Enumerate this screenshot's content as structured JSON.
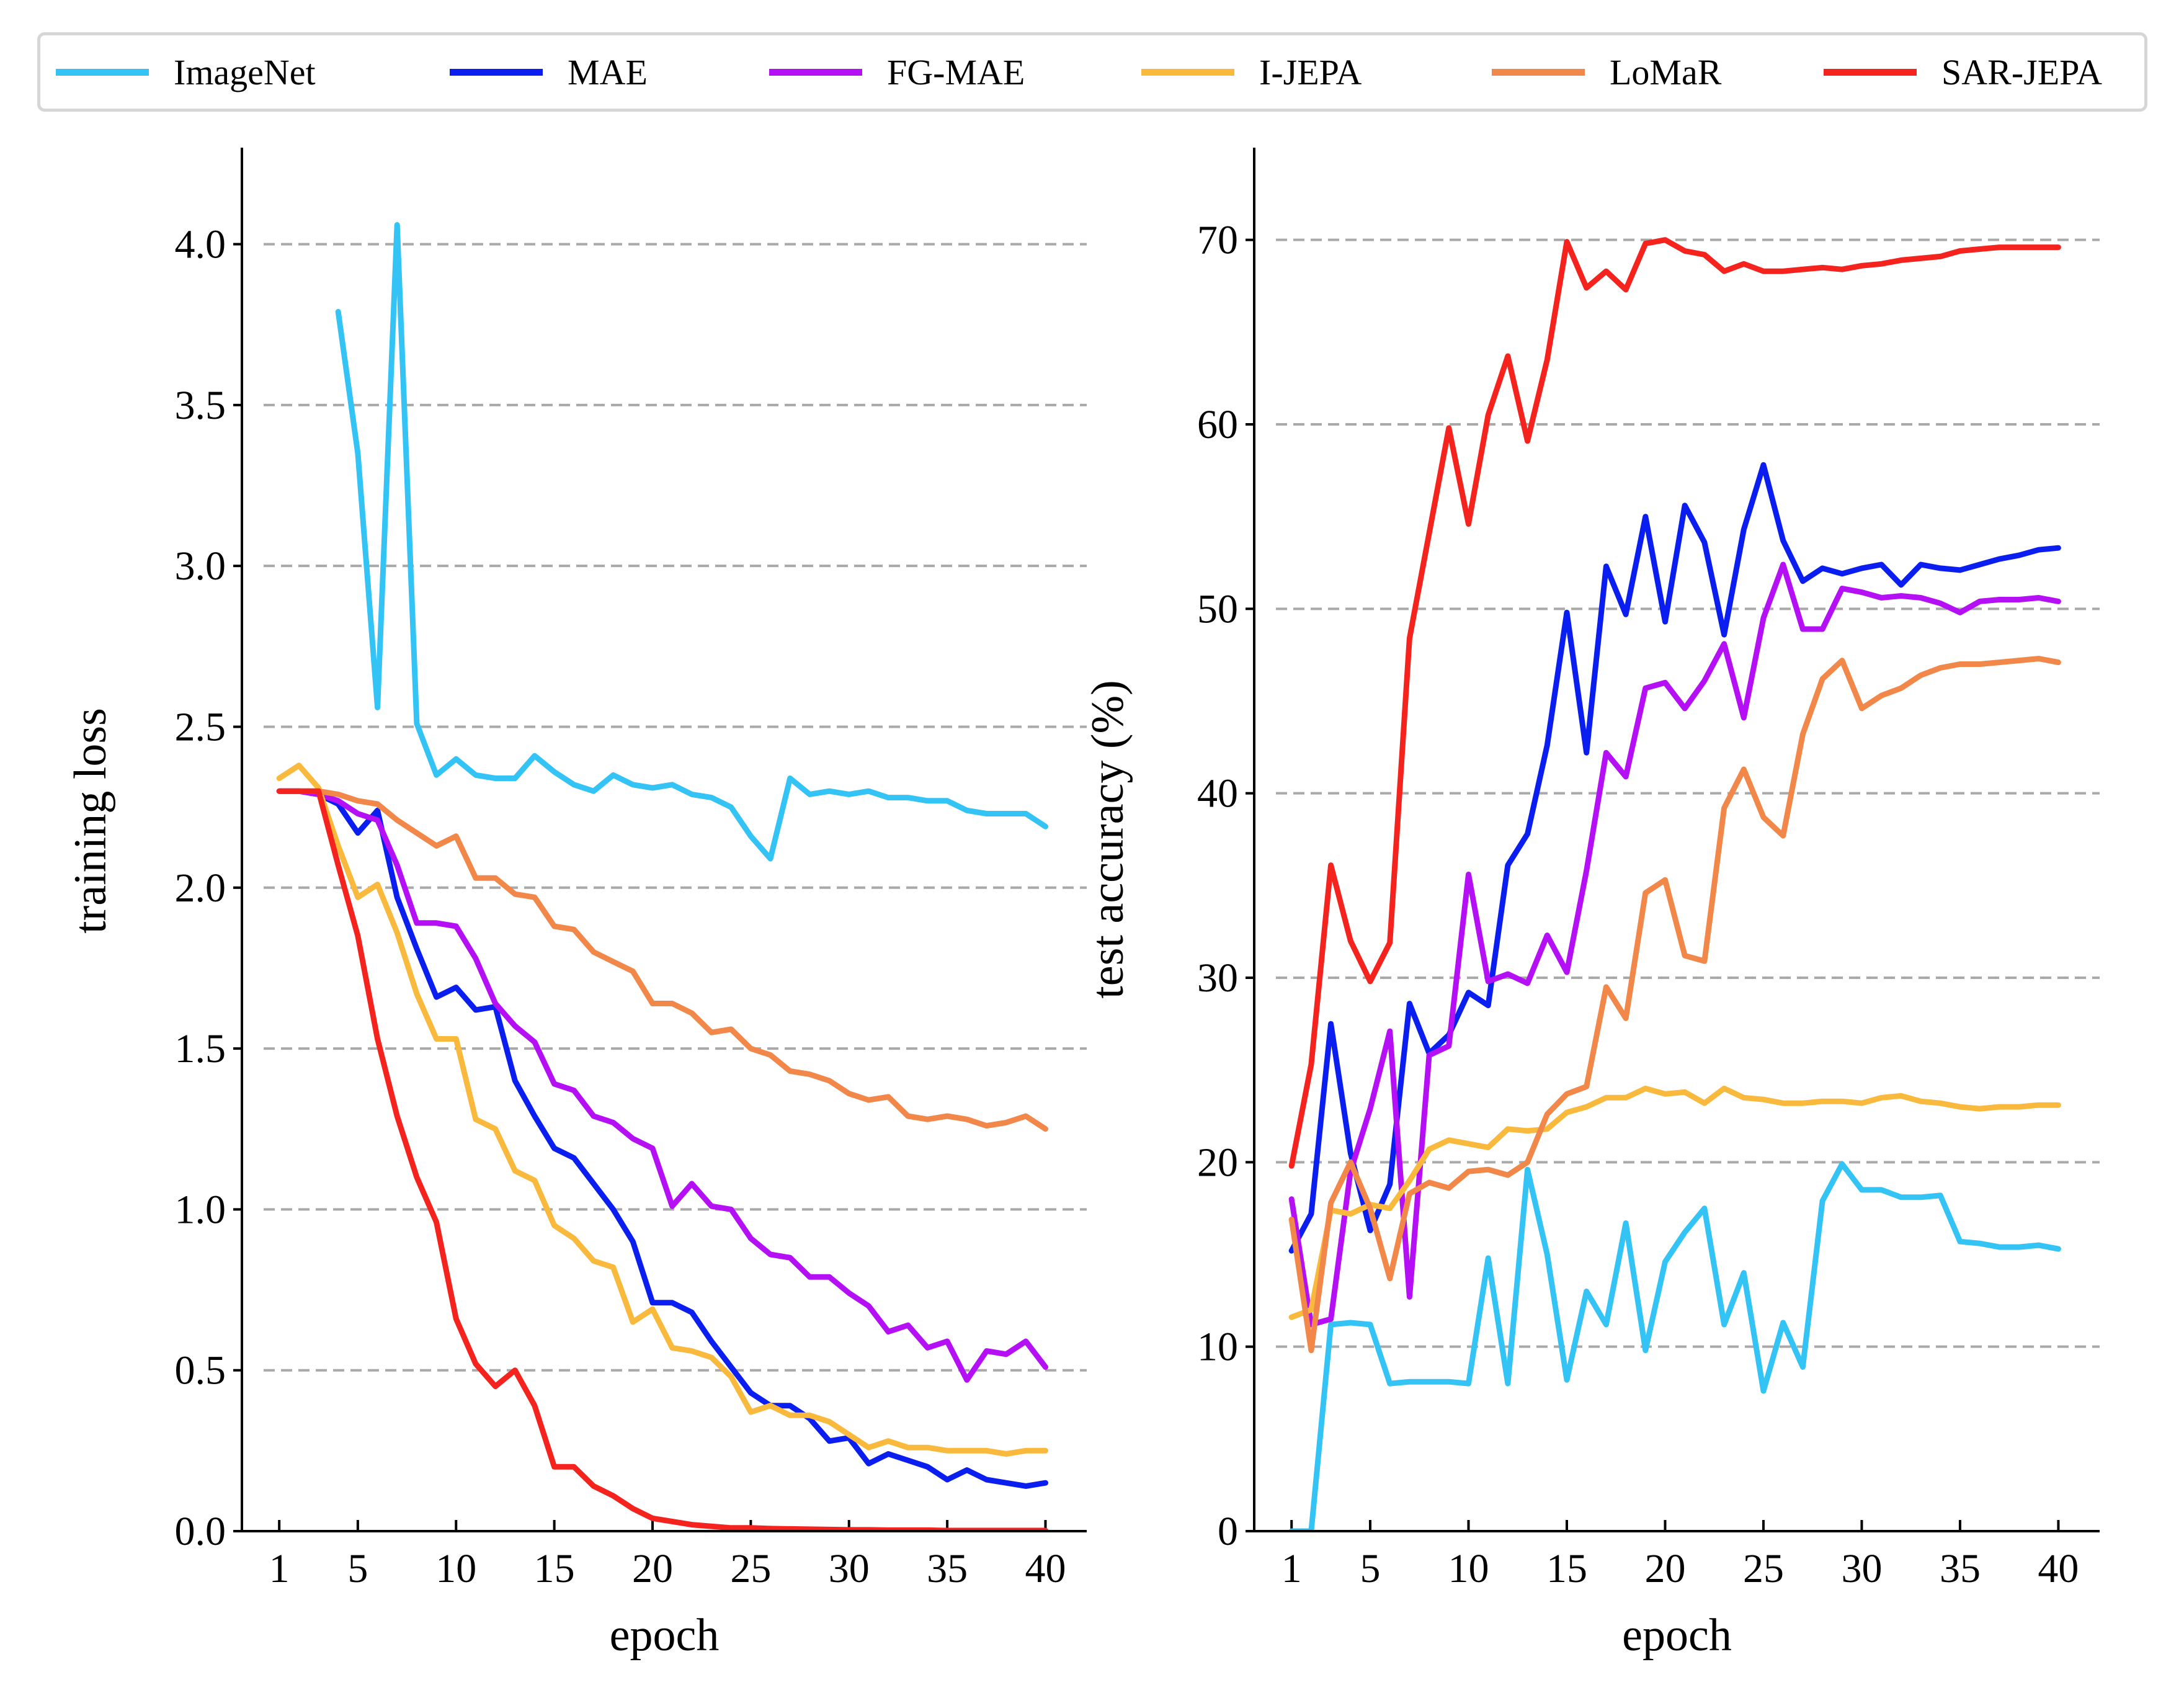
{
  "colors": {
    "ImageNet": "#33c3f4",
    "MAE": "#0a1ef0",
    "FG-MAE": "#b40ff5",
    "I-JEPA": "#f8b93c",
    "LoMaR": "#f2874a",
    "SAR-JEPA": "#f5231e"
  },
  "legend": [
    "ImageNet",
    "MAE",
    "FG-MAE",
    "I-JEPA",
    "LoMaR",
    "SAR-JEPA"
  ],
  "chart_data": [
    {
      "type": "line",
      "xlabel": "epoch",
      "ylabel": "training loss",
      "xticks": [
        1,
        5,
        10,
        15,
        20,
        25,
        30,
        35,
        40
      ],
      "yticks": [
        "0.0",
        "0.5",
        "1.0",
        "1.5",
        "2.0",
        "2.5",
        "3.0",
        "3.5",
        "4.0"
      ],
      "xlim": [
        -0.9,
        42.1
      ],
      "ylim": [
        0,
        4.3
      ],
      "grid": "y-dashed",
      "legend_position": "top",
      "series": [
        {
          "name": "ImageNet",
          "x": [
            4,
            5,
            6,
            7,
            8,
            9,
            10,
            11,
            12,
            13,
            14,
            15,
            16,
            17,
            18,
            19,
            20,
            21,
            22,
            23,
            24,
            25,
            26,
            27,
            28,
            29,
            30,
            31,
            32,
            33,
            34,
            35,
            36,
            37,
            38,
            39,
            40
          ],
          "values": [
            3.79,
            3.35,
            2.56,
            4.06,
            2.51,
            2.35,
            2.4,
            2.35,
            2.34,
            2.34,
            2.41,
            2.36,
            2.32,
            2.3,
            2.35,
            2.32,
            2.31,
            2.32,
            2.29,
            2.28,
            2.25,
            2.16,
            2.09,
            2.34,
            2.29,
            2.3,
            2.29,
            2.3,
            2.28,
            2.28,
            2.27,
            2.27,
            2.24,
            2.23,
            2.23,
            2.23,
            2.19
          ]
        },
        {
          "name": "MAE",
          "x": [
            1,
            2,
            3,
            4,
            5,
            6,
            7,
            8,
            9,
            10,
            11,
            12,
            13,
            14,
            15,
            16,
            17,
            18,
            19,
            20,
            21,
            22,
            23,
            24,
            25,
            26,
            27,
            28,
            29,
            30,
            31,
            32,
            33,
            34,
            35,
            36,
            37,
            38,
            39,
            40
          ],
          "values": [
            2.3,
            2.3,
            2.29,
            2.26,
            2.17,
            2.24,
            1.97,
            1.81,
            1.66,
            1.69,
            1.62,
            1.63,
            1.4,
            1.29,
            1.19,
            1.16,
            1.08,
            1.0,
            0.9,
            0.71,
            0.71,
            0.68,
            0.59,
            0.51,
            0.43,
            0.39,
            0.39,
            0.35,
            0.28,
            0.29,
            0.21,
            0.24,
            0.22,
            0.2,
            0.16,
            0.19,
            0.16,
            0.15,
            0.14,
            0.15
          ]
        },
        {
          "name": "FG-MAE",
          "x": [
            1,
            2,
            3,
            4,
            5,
            6,
            7,
            8,
            9,
            10,
            11,
            12,
            13,
            14,
            15,
            16,
            17,
            18,
            19,
            20,
            21,
            22,
            23,
            24,
            25,
            26,
            27,
            28,
            29,
            30,
            31,
            32,
            33,
            34,
            35,
            36,
            37,
            38,
            39,
            40
          ],
          "values": [
            2.3,
            2.3,
            2.29,
            2.27,
            2.23,
            2.21,
            2.07,
            1.89,
            1.89,
            1.88,
            1.78,
            1.64,
            1.57,
            1.52,
            1.39,
            1.37,
            1.29,
            1.27,
            1.22,
            1.19,
            1.01,
            1.08,
            1.01,
            1.0,
            0.91,
            0.86,
            0.85,
            0.79,
            0.79,
            0.74,
            0.7,
            0.62,
            0.64,
            0.57,
            0.59,
            0.47,
            0.56,
            0.55,
            0.59,
            0.51
          ]
        },
        {
          "name": "I-JEPA",
          "x": [
            1,
            2,
            3,
            4,
            5,
            6,
            7,
            8,
            9,
            10,
            11,
            12,
            13,
            14,
            15,
            16,
            17,
            18,
            19,
            20,
            21,
            22,
            23,
            24,
            25,
            26,
            27,
            28,
            29,
            30,
            31,
            32,
            33,
            34,
            35,
            36,
            37,
            38,
            39,
            40
          ],
          "values": [
            2.34,
            2.38,
            2.31,
            2.13,
            1.97,
            2.01,
            1.86,
            1.67,
            1.53,
            1.53,
            1.28,
            1.25,
            1.12,
            1.09,
            0.95,
            0.91,
            0.84,
            0.82,
            0.65,
            0.69,
            0.57,
            0.56,
            0.54,
            0.48,
            0.37,
            0.39,
            0.36,
            0.36,
            0.34,
            0.3,
            0.26,
            0.28,
            0.26,
            0.26,
            0.25,
            0.25,
            0.25,
            0.24,
            0.25,
            0.25
          ]
        },
        {
          "name": "LoMaR",
          "x": [
            1,
            2,
            3,
            4,
            5,
            6,
            7,
            8,
            9,
            10,
            11,
            12,
            13,
            14,
            15,
            16,
            17,
            18,
            19,
            20,
            21,
            22,
            23,
            24,
            25,
            26,
            27,
            28,
            29,
            30,
            31,
            32,
            33,
            34,
            35,
            36,
            37,
            38,
            39,
            40
          ],
          "values": [
            2.3,
            2.3,
            2.3,
            2.29,
            2.27,
            2.26,
            2.21,
            2.17,
            2.13,
            2.16,
            2.03,
            2.03,
            1.98,
            1.97,
            1.88,
            1.87,
            1.8,
            1.77,
            1.74,
            1.64,
            1.64,
            1.61,
            1.55,
            1.56,
            1.5,
            1.48,
            1.43,
            1.42,
            1.4,
            1.36,
            1.34,
            1.35,
            1.29,
            1.28,
            1.29,
            1.28,
            1.26,
            1.27,
            1.29,
            1.25
          ]
        },
        {
          "name": "SAR-JEPA",
          "x": [
            1,
            2,
            3,
            4,
            5,
            6,
            7,
            8,
            9,
            10,
            11,
            12,
            13,
            14,
            15,
            16,
            17,
            18,
            19,
            20,
            21,
            22,
            23,
            24,
            25,
            26,
            27,
            28,
            29,
            30,
            31,
            32,
            33,
            34,
            35,
            36,
            37,
            38,
            39,
            40
          ],
          "values": [
            2.3,
            2.3,
            2.3,
            2.07,
            1.85,
            1.53,
            1.29,
            1.1,
            0.96,
            0.66,
            0.52,
            0.45,
            0.5,
            0.39,
            0.2,
            0.2,
            0.14,
            0.11,
            0.07,
            0.04,
            0.03,
            0.02,
            0.015,
            0.01,
            0.01,
            0.008,
            0.007,
            0.006,
            0.005,
            0.004,
            0.004,
            0.003,
            0.003,
            0.003,
            0.002,
            0.002,
            0.002,
            0.002,
            0.002,
            0.002
          ]
        }
      ]
    },
    {
      "type": "line",
      "xlabel": "epoch",
      "ylabel": "test accuracy (%)",
      "xticks": [
        1,
        5,
        10,
        15,
        20,
        25,
        30,
        35,
        40
      ],
      "yticks": [
        "0",
        "10",
        "20",
        "30",
        "40",
        "50",
        "60",
        "70"
      ],
      "xlim": [
        -0.9,
        42.1
      ],
      "ylim": [
        0,
        75
      ],
      "grid": "y-dashed",
      "series": [
        {
          "name": "ImageNet",
          "x": [
            1,
            2,
            3,
            4,
            5,
            6,
            7,
            8,
            9,
            10,
            11,
            12,
            13,
            14,
            15,
            16,
            17,
            18,
            19,
            20,
            21,
            22,
            23,
            24,
            25,
            26,
            27,
            28,
            29,
            30,
            31,
            32,
            33,
            34,
            35,
            36,
            37,
            38,
            39,
            40
          ],
          "values": [
            0,
            0,
            11.2,
            11.3,
            11.2,
            8.0,
            8.1,
            8.1,
            8.1,
            8.0,
            14.8,
            8.0,
            19.6,
            15.0,
            8.2,
            13.0,
            11.2,
            16.7,
            9.8,
            14.6,
            16.2,
            17.5,
            11.2,
            14.0,
            7.6,
            11.3,
            8.9,
            17.9,
            19.9,
            18.5,
            18.5,
            18.1,
            18.1,
            18.2,
            15.7,
            15.6,
            15.4,
            15.4,
            15.5,
            15.3
          ]
        },
        {
          "name": "MAE",
          "x": [
            1,
            2,
            3,
            4,
            5,
            6,
            7,
            8,
            9,
            10,
            11,
            12,
            13,
            14,
            15,
            16,
            17,
            18,
            19,
            20,
            21,
            22,
            23,
            24,
            25,
            26,
            27,
            28,
            29,
            30,
            31,
            32,
            33,
            34,
            35,
            36,
            37,
            38,
            39,
            40
          ],
          "values": [
            15.2,
            17.2,
            27.5,
            20.5,
            16.3,
            18.8,
            28.6,
            25.9,
            26.9,
            29.2,
            28.5,
            36.1,
            37.8,
            42.6,
            49.8,
            42.2,
            52.3,
            49.7,
            55.0,
            49.3,
            55.6,
            53.6,
            48.6,
            54.3,
            57.8,
            53.7,
            51.5,
            52.2,
            51.9,
            52.2,
            52.4,
            51.3,
            52.4,
            52.2,
            52.1,
            52.4,
            52.7,
            52.9,
            53.2,
            53.3
          ]
        },
        {
          "name": "FG-MAE",
          "x": [
            1,
            2,
            3,
            4,
            5,
            6,
            7,
            8,
            9,
            10,
            11,
            12,
            13,
            14,
            15,
            16,
            17,
            18,
            19,
            20,
            21,
            22,
            23,
            24,
            25,
            26,
            27,
            28,
            29,
            30,
            31,
            32,
            33,
            34,
            35,
            36,
            37,
            38,
            39,
            40
          ],
          "values": [
            18.0,
            11.2,
            11.5,
            19.5,
            22.9,
            27.1,
            12.7,
            25.8,
            26.3,
            35.6,
            29.8,
            30.2,
            29.7,
            32.3,
            30.3,
            35.8,
            42.2,
            40.9,
            45.7,
            46.0,
            44.6,
            46.1,
            48.1,
            44.1,
            49.5,
            52.4,
            48.9,
            48.9,
            51.1,
            50.9,
            50.6,
            50.7,
            50.6,
            50.3,
            49.8,
            50.4,
            50.5,
            50.5,
            50.6,
            50.4
          ]
        },
        {
          "name": "I-JEPA",
          "x": [
            1,
            2,
            3,
            4,
            5,
            6,
            7,
            8,
            9,
            10,
            11,
            12,
            13,
            14,
            15,
            16,
            17,
            18,
            19,
            20,
            21,
            22,
            23,
            24,
            25,
            26,
            27,
            28,
            29,
            30,
            31,
            32,
            33,
            34,
            35,
            36,
            37,
            38,
            39,
            40
          ],
          "values": [
            11.6,
            12.0,
            17.4,
            17.2,
            17.7,
            17.5,
            19.0,
            20.7,
            21.2,
            21.0,
            20.8,
            21.8,
            21.7,
            21.8,
            22.7,
            23.0,
            23.5,
            23.5,
            24.0,
            23.7,
            23.8,
            23.2,
            24.0,
            23.5,
            23.4,
            23.2,
            23.2,
            23.3,
            23.3,
            23.2,
            23.5,
            23.6,
            23.3,
            23.2,
            23.0,
            22.9,
            23.0,
            23.0,
            23.1,
            23.1
          ]
        },
        {
          "name": "LoMaR",
          "x": [
            1,
            2,
            3,
            4,
            5,
            6,
            7,
            8,
            9,
            10,
            11,
            12,
            13,
            14,
            15,
            16,
            17,
            18,
            19,
            20,
            21,
            22,
            23,
            24,
            25,
            26,
            27,
            28,
            29,
            30,
            31,
            32,
            33,
            34,
            35,
            36,
            37,
            38,
            39,
            40
          ],
          "values": [
            16.9,
            9.8,
            17.8,
            20.0,
            17.5,
            13.7,
            18.3,
            18.9,
            18.6,
            19.5,
            19.6,
            19.3,
            20.0,
            22.6,
            23.7,
            24.1,
            29.5,
            27.8,
            34.6,
            35.3,
            31.2,
            30.9,
            39.2,
            41.3,
            38.7,
            37.7,
            43.2,
            46.2,
            47.2,
            44.6,
            45.3,
            45.7,
            46.4,
            46.8,
            47.0,
            47.0,
            47.1,
            47.2,
            47.3,
            47.1
          ]
        },
        {
          "name": "SAR-JEPA",
          "x": [
            1,
            2,
            3,
            4,
            5,
            6,
            7,
            8,
            9,
            10,
            11,
            12,
            13,
            14,
            15,
            16,
            17,
            18,
            19,
            20,
            21,
            22,
            23,
            24,
            25,
            26,
            27,
            28,
            29,
            30,
            31,
            32,
            33,
            34,
            35,
            36,
            37,
            38,
            39,
            40
          ],
          "values": [
            19.8,
            25.3,
            36.1,
            32.0,
            29.8,
            31.9,
            48.4,
            54.1,
            59.8,
            54.6,
            60.5,
            63.7,
            59.1,
            63.5,
            69.9,
            67.4,
            68.3,
            67.3,
            69.8,
            70.0,
            69.4,
            69.2,
            68.3,
            68.7,
            68.3,
            68.3,
            68.4,
            68.5,
            68.4,
            68.6,
            68.7,
            68.9,
            69.0,
            69.1,
            69.4,
            69.5,
            69.6,
            69.6,
            69.6,
            69.6
          ]
        }
      ]
    }
  ]
}
